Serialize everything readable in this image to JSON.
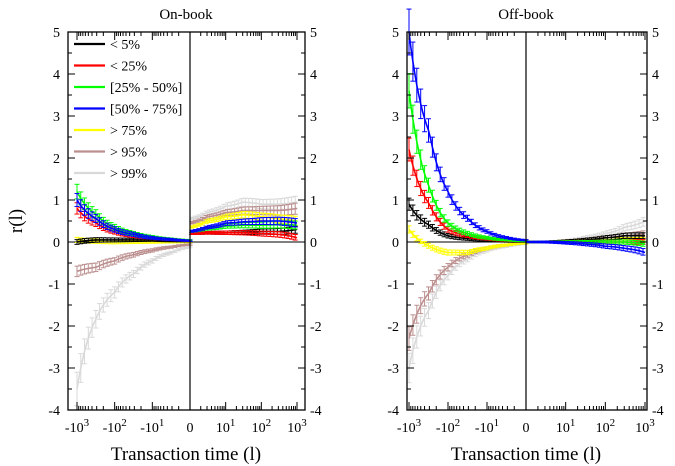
{
  "chart_data": [
    {
      "type": "line",
      "title": "On-book",
      "xlabel": "Transaction time (l)",
      "ylabel": "r(l)",
      "ylim": [
        -4,
        5
      ],
      "xscale": "symmetric-log",
      "xlim": [
        -1000,
        1000
      ],
      "grid": false,
      "legend_position": "top-left",
      "x_tick_labels": [
        "-10^3",
        "-10^2",
        "-10^1",
        "0",
        "10^1",
        "10^2",
        "10^3"
      ],
      "y_tick_labels": [
        "-4",
        "-3",
        "-2",
        "-1",
        "0",
        "1",
        "2",
        "3",
        "4",
        "5"
      ],
      "error_bars": true,
      "series": [
        {
          "name": "< 5%",
          "color": "#000000",
          "x": [
            -1000,
            -300,
            -100,
            -30,
            -10,
            -3,
            -1,
            1,
            3,
            10,
            30,
            100,
            300,
            1000
          ],
          "y": [
            0.0,
            0.05,
            0.05,
            0.05,
            0.05,
            0.03,
            0.02,
            0.2,
            0.22,
            0.22,
            0.23,
            0.25,
            0.25,
            0.3
          ]
        },
        {
          "name": "< 25%",
          "color": "#ff0000",
          "x": [
            -1000,
            -300,
            -100,
            -30,
            -10,
            -3,
            -1,
            1,
            3,
            10,
            30,
            100,
            300,
            1000
          ],
          "y": [
            0.8,
            0.45,
            0.25,
            0.15,
            0.1,
            0.06,
            0.03,
            0.2,
            0.22,
            0.22,
            0.22,
            0.2,
            0.18,
            0.1
          ]
        },
        {
          "name": "[25% - 50%]",
          "color": "#00ff00",
          "x": [
            -1000,
            -300,
            -100,
            -30,
            -10,
            -3,
            -1,
            1,
            3,
            10,
            30,
            100,
            300,
            1000
          ],
          "y": [
            1.2,
            0.65,
            0.35,
            0.2,
            0.12,
            0.07,
            0.04,
            0.25,
            0.32,
            0.38,
            0.4,
            0.4,
            0.42,
            0.4
          ]
        },
        {
          "name": "[50% - 75%]",
          "color": "#0000ff",
          "x": [
            -1000,
            -300,
            -100,
            -30,
            -10,
            -3,
            -1,
            1,
            3,
            10,
            30,
            100,
            300,
            1000
          ],
          "y": [
            1.0,
            0.55,
            0.3,
            0.18,
            0.1,
            0.06,
            0.03,
            0.25,
            0.35,
            0.45,
            0.48,
            0.5,
            0.5,
            0.45
          ]
        },
        {
          "name": "> 75%",
          "color": "#ffff00",
          "x": [
            -1000,
            -300,
            -100,
            -30,
            -10,
            -3,
            -1,
            1,
            3,
            10,
            30,
            100,
            300,
            1000
          ],
          "y": [
            0.05,
            0.02,
            0.0,
            0.0,
            0.0,
            0.0,
            0.0,
            0.35,
            0.5,
            0.6,
            0.65,
            0.6,
            0.55,
            0.5
          ]
        },
        {
          "name": "> 95%",
          "color": "#bc8f8f",
          "x": [
            -1000,
            -300,
            -100,
            -30,
            -10,
            -3,
            -1,
            1,
            3,
            10,
            30,
            100,
            300,
            1000
          ],
          "y": [
            -0.7,
            -0.6,
            -0.45,
            -0.3,
            -0.2,
            -0.12,
            -0.06,
            0.45,
            0.6,
            0.7,
            0.75,
            0.75,
            0.75,
            0.8
          ]
        },
        {
          "name": "> 99%",
          "color": "#d9d9d9",
          "x": [
            -1000,
            -300,
            -100,
            -30,
            -10,
            -3,
            -1,
            1,
            3,
            10,
            30,
            100,
            300,
            1000
          ],
          "y": [
            -3.5,
            -1.8,
            -1.2,
            -0.75,
            -0.45,
            -0.25,
            -0.12,
            0.55,
            0.7,
            0.85,
            0.95,
            0.9,
            0.9,
            0.95
          ]
        }
      ]
    },
    {
      "type": "line",
      "title": "Off-book",
      "xlabel": "Transaction time (l)",
      "ylabel": "",
      "ylim": [
        -4,
        5
      ],
      "xscale": "symmetric-log",
      "xlim": [
        -1000,
        1000
      ],
      "grid": false,
      "x_tick_labels": [
        "-10^3",
        "-10^2",
        "-10^1",
        "0",
        "10^1",
        "10^2",
        "10^3"
      ],
      "y_tick_labels": [
        "-4",
        "-3",
        "-2",
        "-1",
        "0",
        "1",
        "2",
        "3",
        "4",
        "5"
      ],
      "error_bars": true,
      "series": [
        {
          "name": "< 5%",
          "color": "#000000",
          "x": [
            -1000,
            -300,
            -100,
            -30,
            -10,
            -3,
            -1,
            1,
            3,
            10,
            30,
            100,
            300,
            1000
          ],
          "y": [
            0.9,
            0.4,
            0.15,
            0.08,
            0.05,
            0.02,
            0.01,
            0.0,
            0.0,
            0.02,
            0.05,
            0.1,
            0.15,
            0.15
          ]
        },
        {
          "name": "< 25%",
          "color": "#ff0000",
          "x": [
            -1000,
            -300,
            -100,
            -30,
            -10,
            -3,
            -1,
            1,
            3,
            10,
            30,
            100,
            300,
            1000
          ],
          "y": [
            2.2,
            0.9,
            0.3,
            0.15,
            0.08,
            0.04,
            0.02,
            0.0,
            0.0,
            0.0,
            0.0,
            0.0,
            0.0,
            0.0
          ]
        },
        {
          "name": "[25% - 50%]",
          "color": "#00ff00",
          "x": [
            -1000,
            -300,
            -100,
            -30,
            -10,
            -3,
            -1,
            1,
            3,
            10,
            30,
            100,
            300,
            1000
          ],
          "y": [
            3.6,
            1.3,
            0.45,
            0.2,
            0.1,
            0.05,
            0.02,
            0.0,
            0.0,
            0.0,
            0.0,
            0.0,
            0.0,
            -0.05
          ]
        },
        {
          "name": "[50% - 75%]",
          "color": "#0000ff",
          "x": [
            -1000,
            -300,
            -100,
            -30,
            -10,
            -3,
            -1,
            1,
            3,
            10,
            30,
            100,
            300,
            1000
          ],
          "y": [
            5.0,
            2.6,
            1.2,
            0.55,
            0.25,
            0.1,
            0.04,
            0.0,
            0.0,
            -0.02,
            -0.05,
            -0.1,
            -0.15,
            -0.25
          ]
        },
        {
          "name": "> 75%",
          "color": "#ffff00",
          "x": [
            -1000,
            -300,
            -100,
            -30,
            -10,
            -3,
            -1,
            1,
            3,
            10,
            30,
            100,
            300,
            1000
          ],
          "y": [
            0.3,
            -0.1,
            -0.25,
            -0.25,
            -0.15,
            -0.07,
            -0.03,
            0.0,
            0.0,
            0.02,
            0.02,
            0.05,
            0.05,
            0.05
          ]
        },
        {
          "name": "> 95%",
          "color": "#bc8f8f",
          "x": [
            -1000,
            -300,
            -100,
            -30,
            -10,
            -3,
            -1,
            1,
            3,
            10,
            30,
            100,
            300,
            1000
          ],
          "y": [
            -2.3,
            -1.2,
            -0.6,
            -0.3,
            -0.15,
            -0.07,
            -0.03,
            0.0,
            0.0,
            0.02,
            0.05,
            0.1,
            0.15,
            0.2
          ]
        },
        {
          "name": "> 99%",
          "color": "#d9d9d9",
          "x": [
            -1000,
            -300,
            -100,
            -30,
            -10,
            -3,
            -1,
            1,
            3,
            10,
            30,
            100,
            300,
            1000
          ],
          "y": [
            -3.0,
            -1.6,
            -0.8,
            -0.4,
            -0.2,
            -0.1,
            -0.04,
            0.0,
            0.0,
            0.03,
            0.1,
            0.2,
            0.35,
            0.5
          ]
        }
      ]
    }
  ]
}
